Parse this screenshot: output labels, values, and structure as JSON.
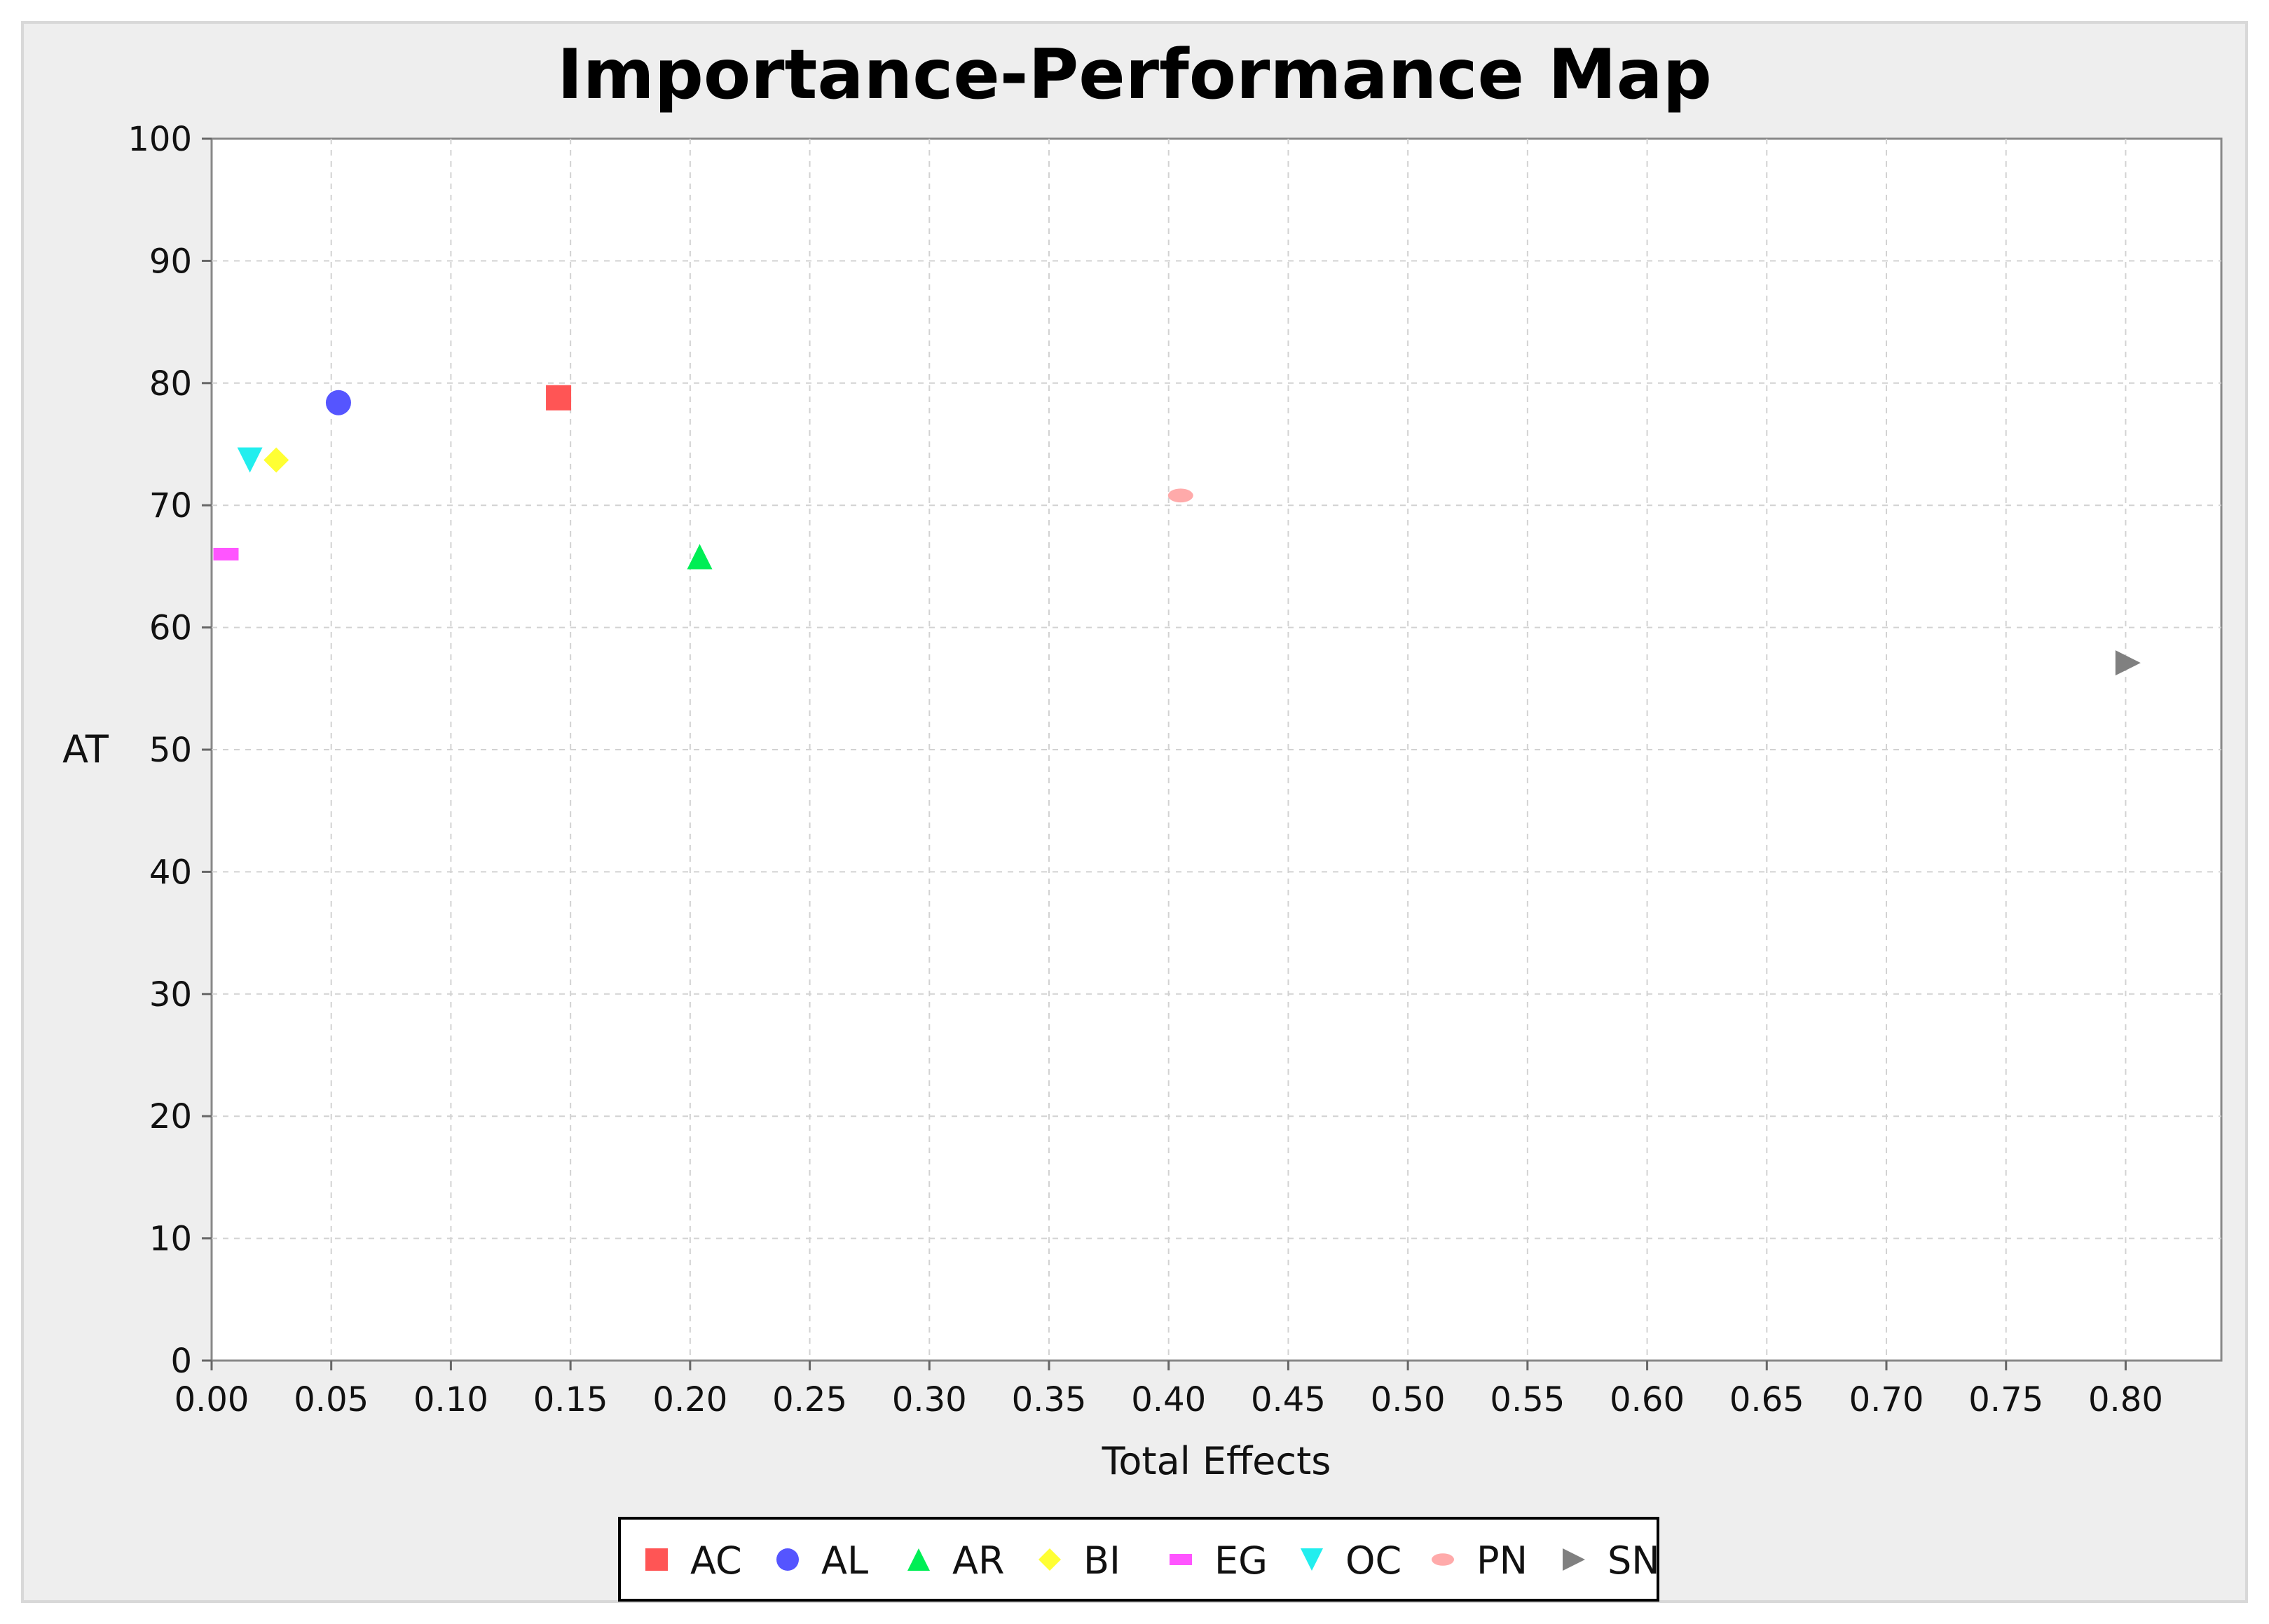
{
  "chart_data": {
    "type": "scatter",
    "title": "Importance-Performance Map",
    "xlabel": "Total Effects",
    "ylabel": "AT",
    "xlim": [
      0,
      0.84
    ],
    "ylim": [
      0,
      100
    ],
    "x_ticks": [
      "0.00",
      "0.05",
      "0.10",
      "0.15",
      "0.20",
      "0.25",
      "0.30",
      "0.35",
      "0.40",
      "0.45",
      "0.50",
      "0.55",
      "0.60",
      "0.65",
      "0.70",
      "0.75",
      "0.80"
    ],
    "y_ticks": [
      "0",
      "10",
      "20",
      "30",
      "40",
      "50",
      "60",
      "70",
      "80",
      "90",
      "100"
    ],
    "grid": true,
    "legend_position": "bottom",
    "series": [
      {
        "name": "AC",
        "x": 0.145,
        "y": 78.8,
        "color": "#ff5555",
        "shape": "square"
      },
      {
        "name": "AL",
        "x": 0.053,
        "y": 78.4,
        "color": "#5555ff",
        "shape": "circle"
      },
      {
        "name": "AR",
        "x": 0.204,
        "y": 65.8,
        "color": "#00ee55",
        "shape": "triangle-up"
      },
      {
        "name": "BI",
        "x": 0.027,
        "y": 73.7,
        "color": "#ffff33",
        "shape": "diamond"
      },
      {
        "name": "EG",
        "x": 0.006,
        "y": 66.0,
        "color": "#ff55ff",
        "shape": "rect-flat"
      },
      {
        "name": "OC",
        "x": 0.016,
        "y": 73.7,
        "color": "#22eeee",
        "shape": "triangle-down"
      },
      {
        "name": "PN",
        "x": 0.405,
        "y": 70.8,
        "color": "#ffaaaa",
        "shape": "ellipse"
      },
      {
        "name": "SN",
        "x": 0.801,
        "y": 57.1,
        "color": "#808080",
        "shape": "triangle-right"
      }
    ]
  }
}
